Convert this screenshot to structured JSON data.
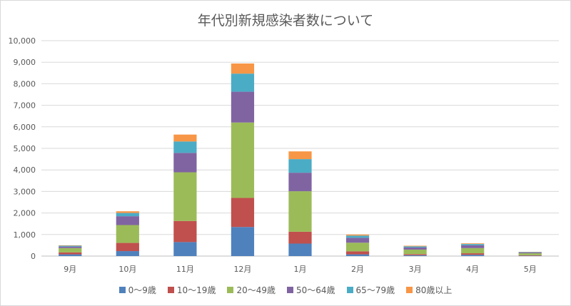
{
  "chart_data": {
    "type": "bar",
    "stacked": true,
    "title": "年代別新規感染者数について",
    "categories": [
      "9月",
      "10月",
      "11月",
      "12月",
      "1月",
      "2月",
      "3月",
      "4月",
      "5月"
    ],
    "ylim": [
      0,
      10000
    ],
    "yticks": [
      0,
      1000,
      2000,
      3000,
      4000,
      5000,
      6000,
      7000,
      8000,
      9000,
      10000
    ],
    "ytick_labels": [
      "0",
      "1,000",
      "2,000",
      "3,000",
      "4,000",
      "5,000",
      "6,000",
      "7,000",
      "8,000",
      "9,000",
      "10,000"
    ],
    "grid": true,
    "legend_position": "bottom",
    "series": [
      {
        "name": "0～9歳",
        "color": "#4f81bd",
        "values": [
          80,
          230,
          650,
          1350,
          580,
          80,
          40,
          60,
          15
        ]
      },
      {
        "name": "10～19歳",
        "color": "#c0504d",
        "values": [
          90,
          380,
          980,
          1350,
          550,
          140,
          50,
          70,
          25
        ]
      },
      {
        "name": "20～49歳",
        "color": "#9bbb59",
        "values": [
          200,
          830,
          2260,
          3500,
          1880,
          400,
          210,
          240,
          90
        ]
      },
      {
        "name": "50～64歳",
        "color": "#8064a2",
        "values": [
          70,
          410,
          900,
          1430,
          860,
          230,
          100,
          130,
          40
        ]
      },
      {
        "name": "65～79歳",
        "color": "#4bacc6",
        "values": [
          40,
          150,
          530,
          840,
          630,
          100,
          50,
          60,
          20
        ]
      },
      {
        "name": "80歳以上",
        "color": "#f79646",
        "values": [
          20,
          80,
          320,
          470,
          360,
          50,
          30,
          30,
          10
        ]
      }
    ]
  }
}
